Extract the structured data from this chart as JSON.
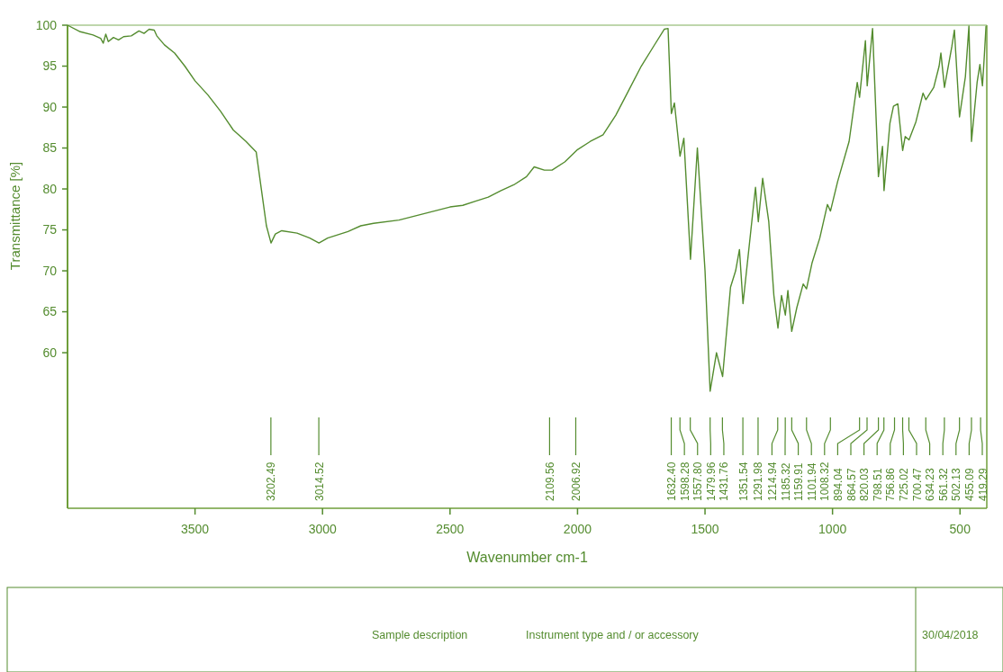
{
  "chart_data": {
    "type": "line",
    "xlabel": "Wavenumber cm-1",
    "ylabel": "Transmittance [%]",
    "xlim": [
      4000,
      395
    ],
    "ylim": [
      41,
      100
    ],
    "xticks": [
      3500,
      3000,
      2500,
      2000,
      1500,
      1000,
      500
    ],
    "yticks": [
      60,
      65,
      70,
      75,
      80,
      85,
      90,
      95,
      100
    ],
    "x": [
      4000,
      3950,
      3900,
      3870,
      3860,
      3850,
      3840,
      3820,
      3800,
      3780,
      3750,
      3720,
      3700,
      3680,
      3660,
      3650,
      3620,
      3580,
      3540,
      3500,
      3450,
      3400,
      3350,
      3300,
      3260,
      3240,
      3220,
      3202,
      3185,
      3160,
      3100,
      3050,
      3014,
      2980,
      2900,
      2850,
      2800,
      2700,
      2600,
      2500,
      2450,
      2400,
      2350,
      2300,
      2250,
      2200,
      2170,
      2130,
      2100,
      2050,
      2020,
      2000,
      1950,
      1900,
      1850,
      1800,
      1750,
      1700,
      1660,
      1645,
      1632,
      1620,
      1598,
      1583,
      1557,
      1530,
      1500,
      1480,
      1455,
      1431,
      1400,
      1380,
      1365,
      1351,
      1320,
      1302,
      1291,
      1274,
      1250,
      1230,
      1214,
      1200,
      1185,
      1175,
      1160,
      1140,
      1115,
      1102,
      1080,
      1050,
      1020,
      1008,
      980,
      935,
      903,
      894,
      871,
      864,
      843,
      820,
      804,
      798,
      775,
      761,
      744,
      725,
      715,
      700,
      673,
      645,
      634,
      603,
      582,
      575,
      561,
      532,
      522,
      502,
      479,
      465,
      455,
      433,
      422,
      412,
      405,
      398
    ],
    "series": [
      {
        "color": "#548c2f",
        "values": [
          100,
          99.2,
          98.8,
          98.4,
          97.8,
          98.9,
          98.0,
          98.5,
          98.2,
          98.6,
          98.7,
          99.3,
          99.0,
          99.5,
          99.4,
          98.7,
          97.6,
          96.6,
          95.0,
          93.2,
          91.5,
          89.5,
          87.2,
          85.8,
          84.5,
          80.0,
          75.5,
          73.4,
          74.5,
          74.9,
          74.6,
          74.0,
          73.4,
          74.0,
          74.8,
          75.5,
          75.8,
          76.2,
          77.0,
          77.8,
          78.0,
          78.5,
          79.0,
          79.8,
          80.5,
          81.5,
          82.7,
          82.3,
          82.3,
          83.3,
          84.2,
          84.8,
          85.8,
          86.6,
          89.0,
          92.0,
          95.0,
          97.5,
          99.5,
          99.6,
          89.2,
          90.5,
          84.0,
          86.2,
          71.4,
          85.0,
          70.0,
          55.3,
          60.0,
          57.1,
          68.0,
          70.0,
          72.6,
          66.0,
          75.0,
          80.2,
          76.0,
          81.3,
          76.0,
          67.0,
          63.0,
          67.0,
          64.6,
          67.6,
          62.6,
          65.5,
          68.4,
          67.8,
          71.0,
          74.0,
          78.1,
          77.3,
          80.9,
          85.8,
          93.0,
          91.2,
          98.1,
          92.6,
          99.6,
          81.5,
          85.2,
          79.8,
          88.0,
          90.1,
          90.4,
          84.7,
          86.4,
          86.0,
          88.2,
          91.7,
          90.9,
          92.4,
          95.0,
          96.6,
          92.4,
          97.4,
          99.4,
          88.8,
          93.7,
          99.9,
          85.8,
          93.0,
          95.2,
          92.6,
          96.1,
          99.9
        ]
      }
    ],
    "annotations": [
      {
        "text": "3202.49",
        "x": 3202.49
      },
      {
        "text": "3014.52",
        "x": 3014.52
      },
      {
        "text": "2109.56",
        "x": 2109.56
      },
      {
        "text": "2006.92",
        "x": 2006.92
      },
      {
        "text": "1632.40",
        "x": 1632.4
      },
      {
        "text": "1598.28",
        "x": 1598.28
      },
      {
        "text": "1557.80",
        "x": 1557.8
      },
      {
        "text": "1479.96",
        "x": 1479.96
      },
      {
        "text": "1431.76",
        "x": 1431.76
      },
      {
        "text": "1351.54",
        "x": 1351.54
      },
      {
        "text": "1291.98",
        "x": 1291.98
      },
      {
        "text": "1214.94",
        "x": 1214.94
      },
      {
        "text": "1185.32",
        "x": 1185.32
      },
      {
        "text": "1159.91",
        "x": 1159.91
      },
      {
        "text": "1101.94",
        "x": 1101.94
      },
      {
        "text": "1008.32",
        "x": 1008.32
      },
      {
        "text": "894.04",
        "x": 894.04
      },
      {
        "text": "864.57",
        "x": 864.57
      },
      {
        "text": "820.03",
        "x": 820.03
      },
      {
        "text": "798.51",
        "x": 798.51
      },
      {
        "text": "756.86",
        "x": 756.86
      },
      {
        "text": "725.02",
        "x": 725.02
      },
      {
        "text": "700.47",
        "x": 700.47
      },
      {
        "text": "634.23",
        "x": 634.23
      },
      {
        "text": "561.32",
        "x": 561.32
      },
      {
        "text": "502.13",
        "x": 502.13
      },
      {
        "text": "455.09",
        "x": 455.09
      },
      {
        "text": "419.29",
        "x": 419.29
      },
      "Sample description",
      "Instrument type and / or accessory",
      "30/04/2018"
    ]
  }
}
